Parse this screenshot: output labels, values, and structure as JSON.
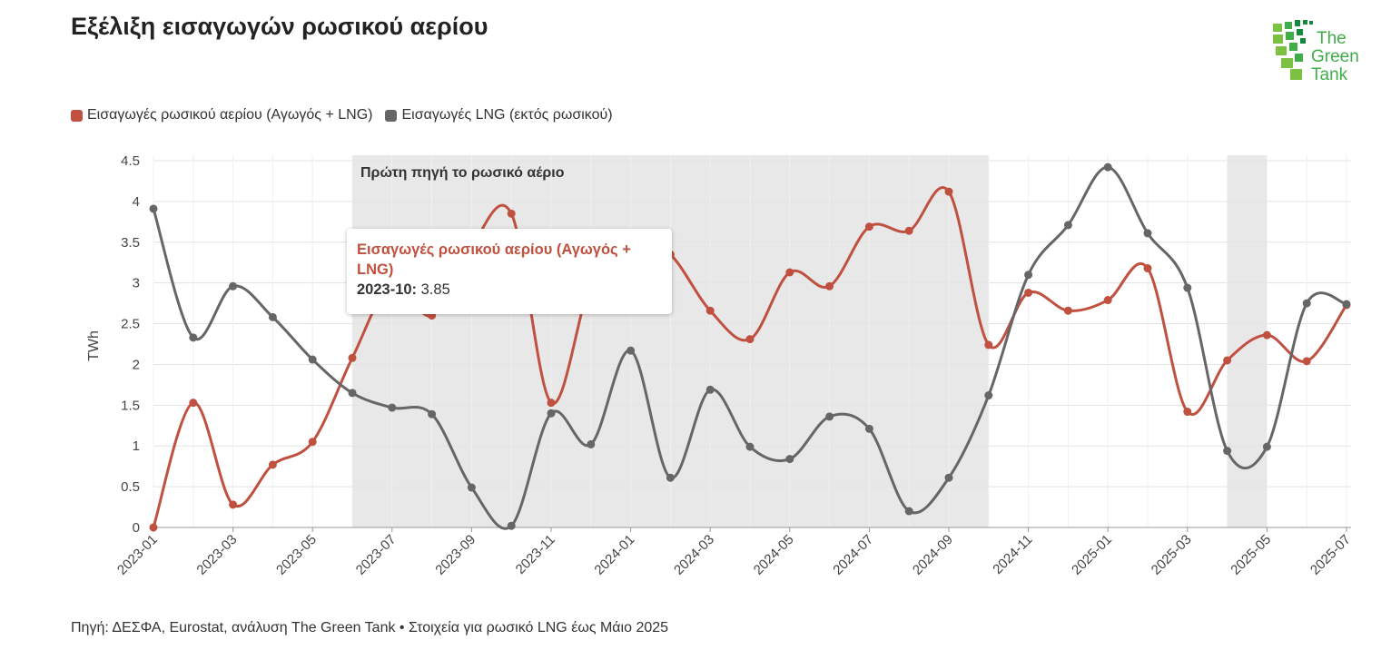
{
  "title": "Εξέλιξη εισαγωγών ρωσικού αερίου",
  "logo_text": "The Green Tank",
  "source": "Πηγή: ΔΕΣΦΑ, Eurostat, ανάλυση The Green Tank • Στοιχεία για ρωσικό LNG έως Μάιο 2025",
  "tooltip": {
    "series": "Εισαγωγές ρωσικού αερίου (Αγωγός + LNG)",
    "label": "2023-10:",
    "value": "3.85"
  },
  "chart_data": {
    "type": "line",
    "ylabel": "TWh",
    "ylim": [
      0,
      4.5
    ],
    "yticks": [
      "0",
      "0.5",
      "1",
      "1.5",
      "2",
      "2.5",
      "3",
      "3.5",
      "4",
      "4.5"
    ],
    "grid": true,
    "legend_position": "top-left",
    "x": [
      "2023-01",
      "2023-02",
      "2023-03",
      "2023-04",
      "2023-05",
      "2023-06",
      "2023-07",
      "2023-08",
      "2023-09",
      "2023-10",
      "2023-11",
      "2023-12",
      "2024-01",
      "2024-02",
      "2024-03",
      "2024-04",
      "2024-05",
      "2024-06",
      "2024-07",
      "2024-08",
      "2024-09",
      "2024-10",
      "2024-11",
      "2024-12",
      "2025-01",
      "2025-02",
      "2025-03",
      "2025-04",
      "2025-05",
      "2025-06",
      "2025-07"
    ],
    "xtick_labels": [
      "2023-01",
      "2023-03",
      "2023-05",
      "2023-07",
      "2023-09",
      "2023-11",
      "2024-01",
      "2024-03",
      "2024-05",
      "2024-07",
      "2024-09",
      "2024-11",
      "2025-01",
      "2025-03",
      "2025-05",
      "2025-07"
    ],
    "series": [
      {
        "name": "Εισαγωγές ρωσικού αερίου (Αγωγός + LNG)",
        "color": "#c0503f",
        "values": [
          0,
          1.53,
          0.28,
          0.77,
          1.05,
          2.08,
          3.0,
          2.6,
          3.45,
          3.85,
          1.53,
          3.0,
          3.6,
          3.35,
          2.66,
          2.31,
          3.13,
          2.96,
          3.69,
          3.64,
          4.12,
          2.24,
          2.88,
          2.66,
          2.79,
          3.18,
          1.42,
          2.05,
          2.36,
          2.04,
          2.73
        ]
      },
      {
        "name": "Εισαγωγές LNG (εκτός ρωσικού)",
        "color": "#666666",
        "values": [
          3.91,
          2.33,
          2.96,
          2.58,
          2.06,
          1.65,
          1.47,
          1.39,
          0.49,
          0.02,
          1.4,
          1.02,
          2.17,
          0.61,
          1.69,
          0.99,
          0.84,
          1.36,
          1.21,
          0.2,
          0.61,
          1.62,
          3.1,
          3.71,
          4.42,
          3.61,
          2.94,
          0.94,
          0.99,
          2.75,
          2.74
        ]
      }
    ],
    "bands": [
      {
        "from": "2023-06",
        "to": "2024-10",
        "label": "Πρώτη πηγή το ρωσικό αέριο"
      },
      {
        "from": "2025-04",
        "to": "2025-05",
        "label": ""
      }
    ]
  }
}
